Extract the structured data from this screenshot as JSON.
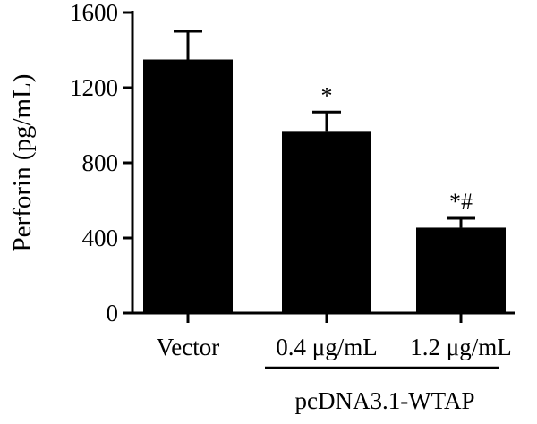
{
  "chart_data": {
    "type": "bar",
    "categories": [
      "Vector",
      "0.4 μg/mL",
      "1.2 μg/mL"
    ],
    "values": [
      1350,
      965,
      455
    ],
    "errors": [
      150,
      105,
      50
    ],
    "significance": [
      "",
      "*",
      "*#"
    ],
    "ylabel": "Perforin (pg/mL)",
    "xlabel": "",
    "group_label": "pcDNA3.1-WTAP",
    "group_members": [
      "0.4 μg/mL",
      "1.2 μg/mL"
    ],
    "ylim": [
      0,
      1600
    ],
    "yticks": [
      "0",
      "400",
      "800",
      "1200",
      "1600"
    ],
    "grid": false,
    "bar_color": "#000000"
  }
}
